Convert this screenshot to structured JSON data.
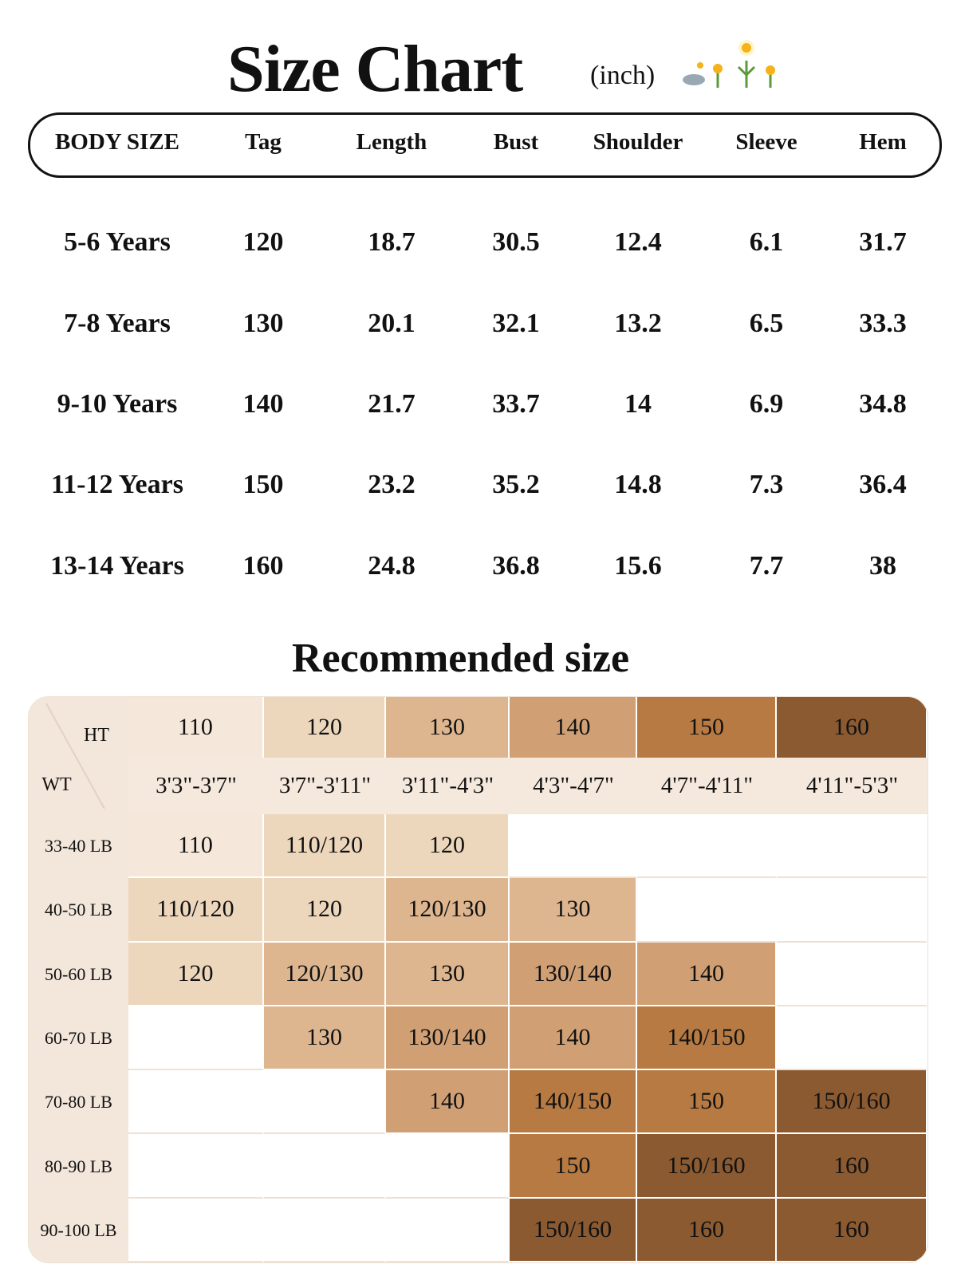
{
  "header": {
    "title": "Size Chart",
    "unit": "(inch)"
  },
  "size_table": {
    "columns": [
      "BODY SIZE",
      "Tag",
      "Length",
      "Bust",
      "Shoulder",
      "Sleeve",
      "Hem"
    ],
    "rows": [
      [
        "5-6 Years",
        "120",
        "18.7",
        "30.5",
        "12.4",
        "6.1",
        "31.7"
      ],
      [
        "7-8 Years",
        "130",
        "20.1",
        "32.1",
        "13.2",
        "6.5",
        "33.3"
      ],
      [
        "9-10 Years",
        "140",
        "21.7",
        "33.7",
        "14",
        "6.9",
        "34.8"
      ],
      [
        "11-12 Years",
        "150",
        "23.2",
        "35.2",
        "14.8",
        "7.3",
        "36.4"
      ],
      [
        "13-14 Years",
        "160",
        "24.8",
        "36.8",
        "15.6",
        "7.7",
        "38"
      ]
    ]
  },
  "recommended": {
    "title": "Recommended size",
    "ht_label": "HT",
    "wt_label": "WT",
    "heights": [
      {
        "tag": "110",
        "range": "3'3\"-3'7\"",
        "color": "#f5e7da"
      },
      {
        "tag": "120",
        "range": "3'7\"-3'11\"",
        "color": "#ecd6bc"
      },
      {
        "tag": "130",
        "range": "3'11\"-4'3\"",
        "color": "#ddb690"
      },
      {
        "tag": "140",
        "range": "4'3\"-4'7\"",
        "color": "#d0a074"
      },
      {
        "tag": "150",
        "range": "4'7\"-4'11\"",
        "color": "#b67a42"
      },
      {
        "tag": "160",
        "range": "4'11\"-5'3\"",
        "color": "#8b5a31"
      }
    ],
    "rows": [
      {
        "weight": "33-40 LB",
        "cells": [
          "110",
          "110/120",
          "120",
          null,
          null,
          null
        ]
      },
      {
        "weight": "40-50 LB",
        "cells": [
          "110/120",
          "120",
          "120/130",
          "130",
          null,
          null
        ]
      },
      {
        "weight": "50-60 LB",
        "cells": [
          "120",
          "120/130",
          "130",
          "130/140",
          "140",
          null
        ]
      },
      {
        "weight": "60-70 LB",
        "cells": [
          null,
          "130",
          "130/140",
          "140",
          "140/150",
          null
        ]
      },
      {
        "weight": "70-80 LB",
        "cells": [
          null,
          null,
          "140",
          "140/150",
          "150",
          "150/160"
        ]
      },
      {
        "weight": "80-90 LB",
        "cells": [
          null,
          null,
          null,
          "150",
          "150/160",
          "160"
        ]
      },
      {
        "weight": "90-100 LB",
        "cells": [
          null,
          null,
          null,
          "150/160",
          "160",
          "160"
        ]
      }
    ]
  }
}
